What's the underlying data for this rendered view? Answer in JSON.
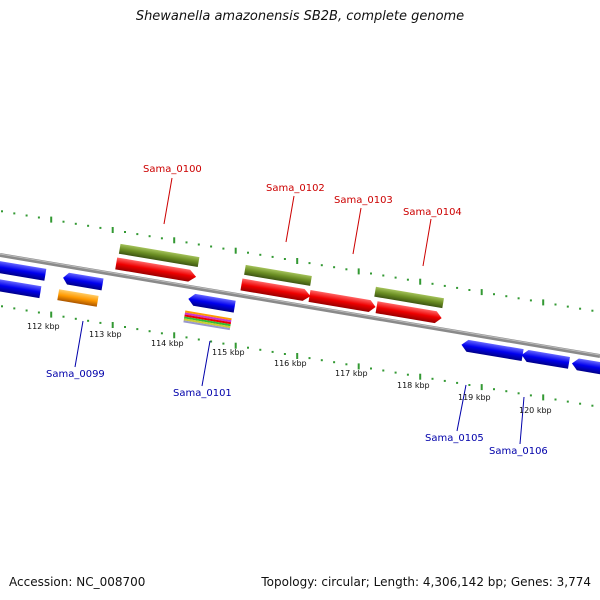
{
  "title": "Shewanella amazonensis SB2B, complete genome",
  "footer": {
    "accession": "Accession: NC_008700",
    "topology": "Topology: circular; Length: 4,306,142 bp; Genes: 3,774"
  },
  "colors": {
    "forward_label": "#cc0000",
    "reverse_label": "#0000aa",
    "cds_forward": "#ee0000",
    "cds_reverse": "#0000ee",
    "gene_olive": "#6b8e23",
    "orange": "#ff9900",
    "backbone": "#888888",
    "ticks": "#339933"
  },
  "scale_labels": [
    "112 kbp",
    "113 kbp",
    "114 kbp",
    "115 kbp",
    "116 kbp",
    "117 kbp",
    "118 kbp",
    "119 kbp",
    "120 kbp"
  ],
  "gene_labels": {
    "forward": [
      "Sama_0100",
      "Sama_0102",
      "Sama_0103",
      "Sama_0104"
    ],
    "reverse": [
      "Sama_0099",
      "Sama_0101",
      "Sama_0105",
      "Sama_0106"
    ]
  }
}
